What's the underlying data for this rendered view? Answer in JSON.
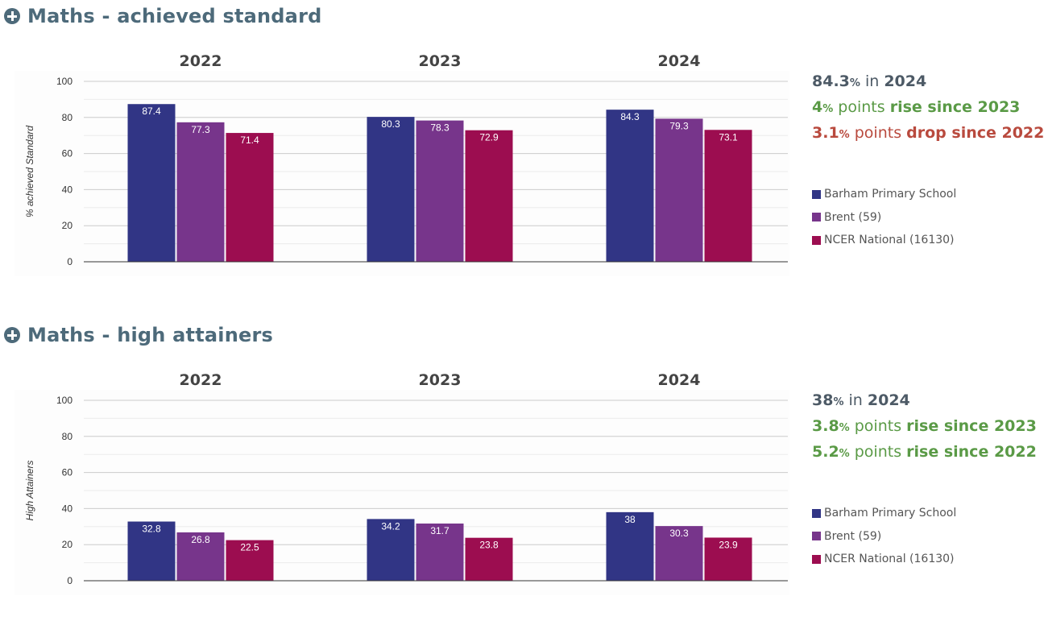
{
  "colors": {
    "heading": "#4d6a7a",
    "school": "#313585",
    "borough": "#77358b",
    "national": "#9c0d50",
    "rise": "#5a9a46",
    "drop": "#b94a3e"
  },
  "icons": {
    "expand": "plus-circle-icon"
  },
  "sections": [
    {
      "heading": "Maths - achieved standard",
      "summary": {
        "current_value": "84.3",
        "current_unit": "%",
        "current_mid": " in ",
        "current_year": "2024",
        "change_1": {
          "value": "4",
          "unit": "%",
          "mid": " points ",
          "text": "rise since 2023",
          "direction": "rise"
        },
        "change_2": {
          "value": "3.1",
          "unit": "%",
          "mid": " points ",
          "text": "drop since 2022",
          "direction": "drop"
        }
      },
      "legend": [
        "Barham Primary School",
        "Brent (59)",
        "NCER National (16130)"
      ]
    },
    {
      "heading": "Maths - high attainers",
      "summary": {
        "current_value": "38",
        "current_unit": "%",
        "current_mid": " in ",
        "current_year": "2024",
        "change_1": {
          "value": "3.8",
          "unit": "%",
          "mid": " points ",
          "text": "rise since 2023",
          "direction": "rise"
        },
        "change_2": {
          "value": "5.2",
          "unit": "%",
          "mid": " points ",
          "text": "rise since 2022",
          "direction": "rise"
        }
      },
      "legend": [
        "Barham Primary School",
        "Brent (59)",
        "NCER National (16130)"
      ]
    }
  ],
  "chart_data": [
    {
      "type": "bar",
      "title": "Maths - achieved standard",
      "ylabel": "% achieved Standard",
      "xlabel": "",
      "categories": [
        "2022",
        "2023",
        "2024"
      ],
      "ylim": [
        0,
        100
      ],
      "yticks": [
        0,
        20,
        40,
        60,
        80,
        100
      ],
      "grid": true,
      "legend_position": "right",
      "series": [
        {
          "name": "Barham Primary School",
          "values": [
            87.4,
            80.3,
            84.3
          ],
          "color": "#313585"
        },
        {
          "name": "Brent (59)",
          "values": [
            77.3,
            78.3,
            79.3
          ],
          "color": "#77358b"
        },
        {
          "name": "NCER National (16130)",
          "values": [
            71.4,
            72.9,
            73.1
          ],
          "color": "#9c0d50"
        }
      ]
    },
    {
      "type": "bar",
      "title": "Maths - high attainers",
      "ylabel": "High Attainers",
      "xlabel": "",
      "categories": [
        "2022",
        "2023",
        "2024"
      ],
      "ylim": [
        0,
        100
      ],
      "yticks": [
        0,
        20,
        40,
        60,
        80,
        100
      ],
      "grid": true,
      "legend_position": "right",
      "series": [
        {
          "name": "Barham Primary School",
          "values": [
            32.8,
            34.2,
            38
          ],
          "color": "#313585"
        },
        {
          "name": "Brent (59)",
          "values": [
            26.8,
            31.7,
            30.3
          ],
          "color": "#77358b"
        },
        {
          "name": "NCER National (16130)",
          "values": [
            22.5,
            23.8,
            23.9
          ],
          "color": "#9c0d50"
        }
      ]
    }
  ]
}
